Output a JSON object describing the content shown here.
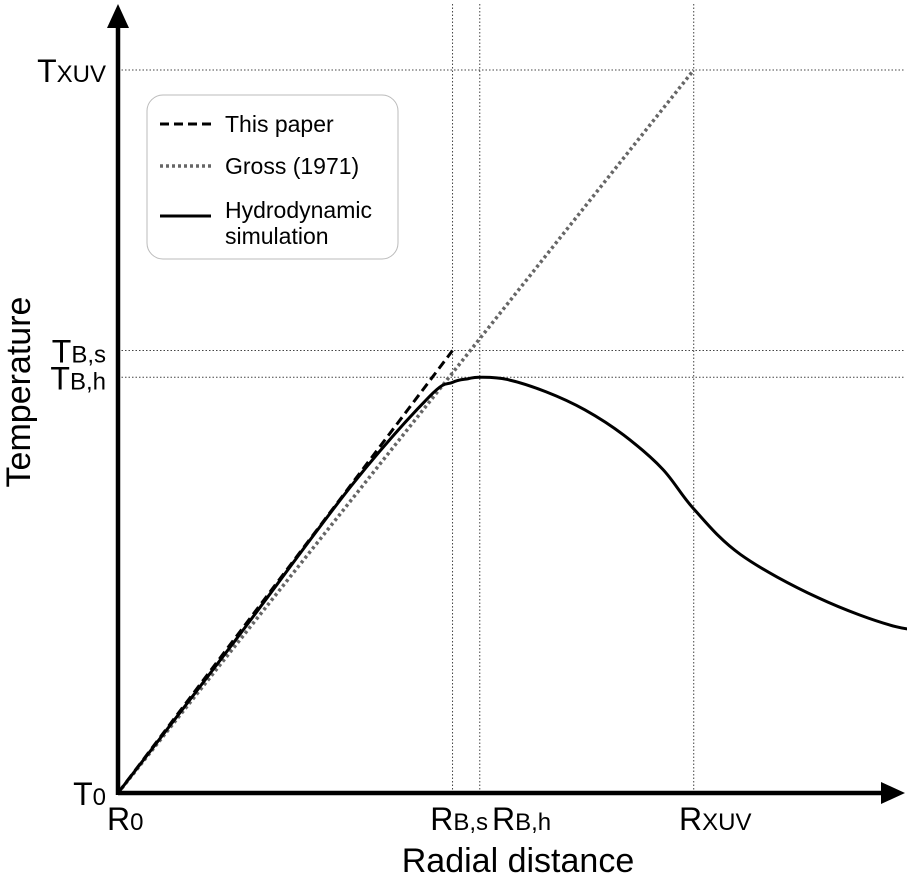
{
  "chart_data": {
    "type": "line",
    "title": "",
    "xlabel": "Radial distance",
    "ylabel": "Temperature",
    "xlim": [
      0,
      1.075
    ],
    "ylim": [
      0,
      1.0
    ],
    "grid": false,
    "legend_position": "top-left",
    "x_ticks": [
      {
        "main": "R",
        "sub": "0",
        "value": 0.0
      },
      {
        "main": "R",
        "sub": "B,s",
        "value": 0.43
      },
      {
        "main": "R",
        "sub": "B,h",
        "value": 0.465
      },
      {
        "main": "R",
        "sub": "XUV",
        "value": 0.74
      }
    ],
    "y_ticks": [
      {
        "main": "T",
        "sub": "0",
        "value": 0.0
      },
      {
        "main": "T",
        "sub": "B,h",
        "value": 0.575
      },
      {
        "main": "T",
        "sub": "B,s",
        "value": 0.612
      },
      {
        "main": "T",
        "sub": "XUV",
        "value": 1.0
      }
    ],
    "series": [
      {
        "name": "This paper",
        "style": "dashed",
        "color": "#000000",
        "x": [
          0.0,
          0.43
        ],
        "y": [
          0.0,
          0.612
        ]
      },
      {
        "name": "Gross (1971)",
        "style": "dotted",
        "color": "#666666",
        "x": [
          0.0,
          0.74
        ],
        "y": [
          0.0,
          1.0
        ]
      },
      {
        "name": "Hydrodynamic simulation",
        "style": "solid",
        "color": "#000000",
        "x": [
          0.0,
          0.15,
          0.3,
          0.4,
          0.43,
          0.45,
          0.465,
          0.5,
          0.55,
          0.6,
          0.65,
          0.7,
          0.74,
          0.8,
          0.9,
          1.0,
          1.06
        ],
        "y": [
          0.0,
          0.21,
          0.425,
          0.548,
          0.568,
          0.573,
          0.575,
          0.572,
          0.555,
          0.53,
          0.495,
          0.448,
          0.393,
          0.33,
          0.27,
          0.23,
          0.226
        ]
      }
    ]
  },
  "legend": {
    "items": [
      {
        "label_lines": [
          "This paper"
        ]
      },
      {
        "label_lines": [
          "Gross (1971)"
        ]
      },
      {
        "label_lines": [
          "Hydrodynamic",
          "simulation"
        ]
      }
    ]
  }
}
